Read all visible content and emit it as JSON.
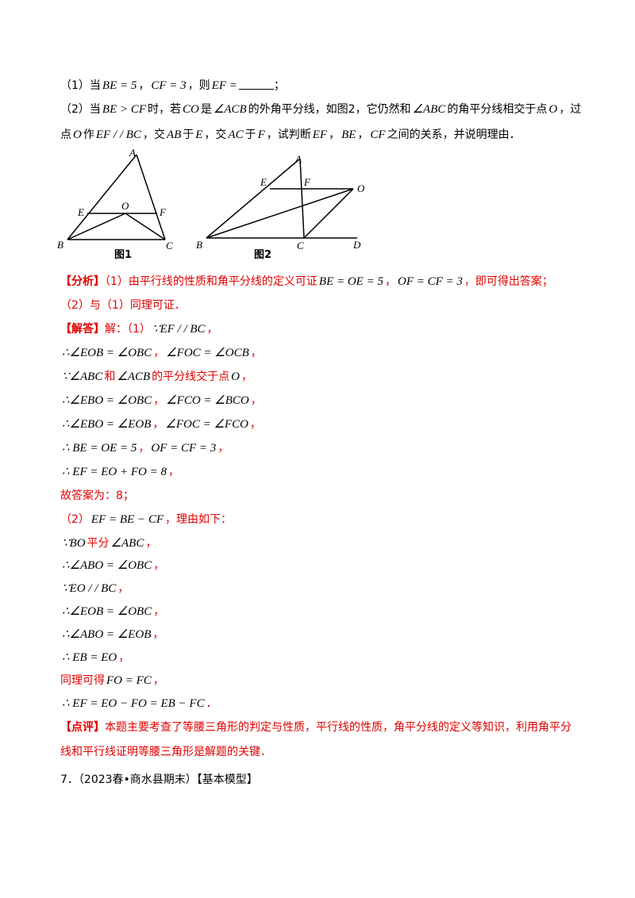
{
  "paragraphs": [
    {
      "color": "#000000",
      "parts": [
        "（1）当",
        {
          "text": "BE = 5",
          "math": true
        },
        "，",
        {
          "text": "CF = 3",
          "math": true
        },
        "，则",
        {
          "text": "EF =",
          "math": true
        },
        {
          "text": "______",
          "blank": true
        },
        "；"
      ]
    },
    {
      "color": "#000000",
      "parts": [
        "（2）当",
        {
          "text": "BE > CF",
          "math": true
        },
        "时，若",
        {
          "text": "CO",
          "math": true
        },
        "是",
        {
          "text": "∠ACB",
          "math": true
        },
        "的外角平分线，如图2，它仍然和",
        {
          "text": "∠ABC",
          "math": true
        },
        "的角平分线相交于点",
        {
          "text": "O",
          "math": true
        },
        "，过"
      ]
    },
    {
      "color": "#000000",
      "parts": [
        "点",
        {
          "text": "O",
          "math": true
        },
        "作",
        {
          "text": "EF / / BC",
          "math": true
        },
        "，交",
        {
          "text": "AB",
          "math": true
        },
        "于",
        {
          "text": "E",
          "math": true
        },
        "，交",
        {
          "text": "AC",
          "math": true
        },
        "于",
        {
          "text": "F",
          "math": true
        },
        "，试判断",
        {
          "text": "EF",
          "math": true
        },
        "，",
        {
          "text": "BE",
          "math": true
        },
        "，",
        {
          "text": "CF",
          "math": true
        },
        "之间的关系，并说明理由．"
      ]
    },
    {
      "color": "#e00000",
      "parts": [
        {
          "text": "【分析】",
          "bold": true
        },
        "（1）由平行线的性质和角平分线的定义可证",
        {
          "text": "BE = OE = 5",
          "math": true
        },
        "，",
        {
          "text": "OF = CF = 3",
          "math": true
        },
        "，即可得出答案；"
      ]
    },
    {
      "color": "#e00000",
      "parts": [
        "（2）与（1）同理可证．"
      ]
    },
    {
      "color": "#e00000",
      "parts": [
        {
          "text": "【解答】",
          "bold": true
        },
        "解：（1）",
        {
          "text": "∵EF / / BC",
          "math": true
        },
        "，"
      ]
    },
    {
      "color": "#e00000",
      "parts": [
        {
          "text": "∴∠EOB = ∠OBC",
          "math": true
        },
        "，",
        {
          "text": "∠FOC = ∠OCB",
          "math": true
        },
        "，"
      ]
    },
    {
      "color": "#e00000",
      "parts": [
        {
          "text": "∵∠ABC",
          "math": true
        },
        "和",
        {
          "text": "∠ACB",
          "math": true
        },
        "的平分线交于点",
        {
          "text": "O",
          "math": true
        },
        "，"
      ]
    },
    {
      "color": "#e00000",
      "parts": [
        {
          "text": "∴∠EBO = ∠OBC",
          "math": true
        },
        "，",
        {
          "text": "∠FCO = ∠BCO",
          "math": true
        },
        "，"
      ]
    },
    {
      "color": "#e00000",
      "parts": [
        {
          "text": "∴∠EBO = ∠EOB",
          "math": true
        },
        "，",
        {
          "text": "∠FOC = ∠FCO",
          "math": true
        },
        "，"
      ]
    },
    {
      "color": "#e00000",
      "parts": [
        {
          "text": "∴ BE = OE = 5",
          "math": true
        },
        "，",
        {
          "text": "OF = CF = 3",
          "math": true
        },
        "，"
      ]
    },
    {
      "color": "#e00000",
      "parts": [
        {
          "text": "∴ EF = EO + FO = 8",
          "math": true
        },
        "，"
      ]
    },
    {
      "color": "#e00000",
      "parts": [
        "故答案为：8；"
      ]
    },
    {
      "color": "#e00000",
      "parts": [
        "（2）",
        {
          "text": "EF = BE − CF",
          "math": true
        },
        "，理由如下："
      ]
    },
    {
      "color": "#e00000",
      "parts": [
        {
          "text": "∵BO",
          "math": true
        },
        "平分",
        {
          "text": "∠ABC",
          "math": true
        },
        "，"
      ]
    },
    {
      "color": "#e00000",
      "parts": [
        {
          "text": "∴∠ABO = ∠OBC",
          "math": true
        },
        "，"
      ]
    },
    {
      "color": "#e00000",
      "parts": [
        {
          "text": "∵EO / / BC",
          "math": true
        },
        "，"
      ]
    },
    {
      "color": "#e00000",
      "parts": [
        {
          "text": "∴∠EOB = ∠OBC",
          "math": true
        },
        "，"
      ]
    },
    {
      "color": "#e00000",
      "parts": [
        {
          "text": "∴∠ABO = ∠EOB",
          "math": true
        },
        "，"
      ]
    },
    {
      "color": "#e00000",
      "parts": [
        {
          "text": "∴ EB = EO",
          "math": true
        },
        "，"
      ]
    },
    {
      "color": "#e00000",
      "parts": [
        "同理可得",
        {
          "text": "FO = FC",
          "math": true
        },
        "，"
      ]
    },
    {
      "color": "#e00000",
      "parts": [
        {
          "text": "∴ EF = EO − FO = EB − FC",
          "math": true
        },
        "．"
      ]
    },
    {
      "color": "#e00000",
      "parts": [
        {
          "text": "【点评】",
          "bold": true
        },
        "本题主要考查了等腰三角形的判定与性质，平行线的性质，角平分线的定义等知识，利用角平分"
      ]
    },
    {
      "color": "#e00000",
      "parts": [
        "线和平行线证明等腰三角形是解题的关键．"
      ]
    },
    {
      "color": "#000000",
      "parts": [
        "7．（2023春•商水县期末）【基本模型】"
      ]
    }
  ],
  "figures": [
    {
      "caption": "图1",
      "labels": [
        "A",
        "E",
        "O",
        "F",
        "B",
        "C"
      ]
    },
    {
      "caption": "图2",
      "labels": [
        "A",
        "E",
        "F",
        "O",
        "B",
        "C",
        "D"
      ]
    }
  ]
}
